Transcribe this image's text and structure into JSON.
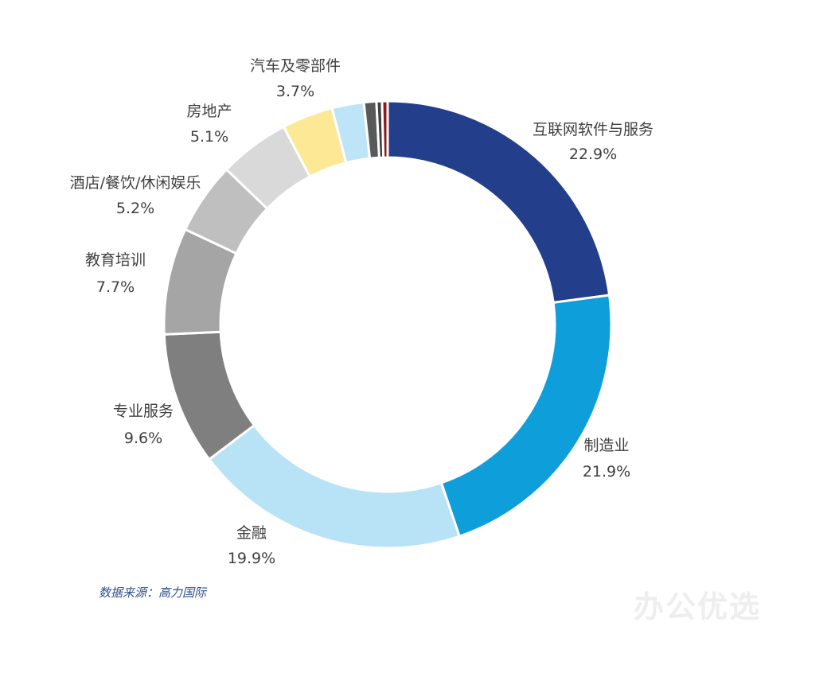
{
  "chart_data": {
    "type": "pie",
    "variant": "donut",
    "slices": [
      {
        "label": "互联网软件与服务",
        "value": 22.9,
        "value_label": "22.9%",
        "color": "#233E8B"
      },
      {
        "label": "制造业",
        "value": 21.9,
        "value_label": "21.9%",
        "color": "#0E9FDA"
      },
      {
        "label": "金融",
        "value": 19.9,
        "value_label": "19.9%",
        "color": "#B8E3F6"
      },
      {
        "label": "专业服务",
        "value": 9.6,
        "value_label": "9.6%",
        "color": "#7F7F7F"
      },
      {
        "label": "教育培训",
        "value": 7.7,
        "value_label": "7.7%",
        "color": "#A5A5A5"
      },
      {
        "label": "酒店/餐饮/休闲娱乐",
        "value": 5.2,
        "value_label": "5.2%",
        "color": "#BFBFBF"
      },
      {
        "label": "房地产",
        "value": 5.1,
        "value_label": "5.1%",
        "color": "#D9D9D9"
      },
      {
        "label": "汽车及零部件",
        "value": 3.7,
        "value_label": "3.7%",
        "color": "#FDE995"
      },
      {
        "label": "",
        "value": 2.3,
        "value_label": "",
        "color": "#BDE5F7"
      },
      {
        "label": "",
        "value": 0.9,
        "value_label": "",
        "color": "#595959"
      },
      {
        "label": "",
        "value": 0.4,
        "value_label": "",
        "color": "#404040"
      },
      {
        "label": "",
        "value": 0.4,
        "value_label": "",
        "color": "#8B1A1A"
      }
    ],
    "legend": "none"
  },
  "source": "数据来源：高力国际",
  "watermark": "办公优选"
}
